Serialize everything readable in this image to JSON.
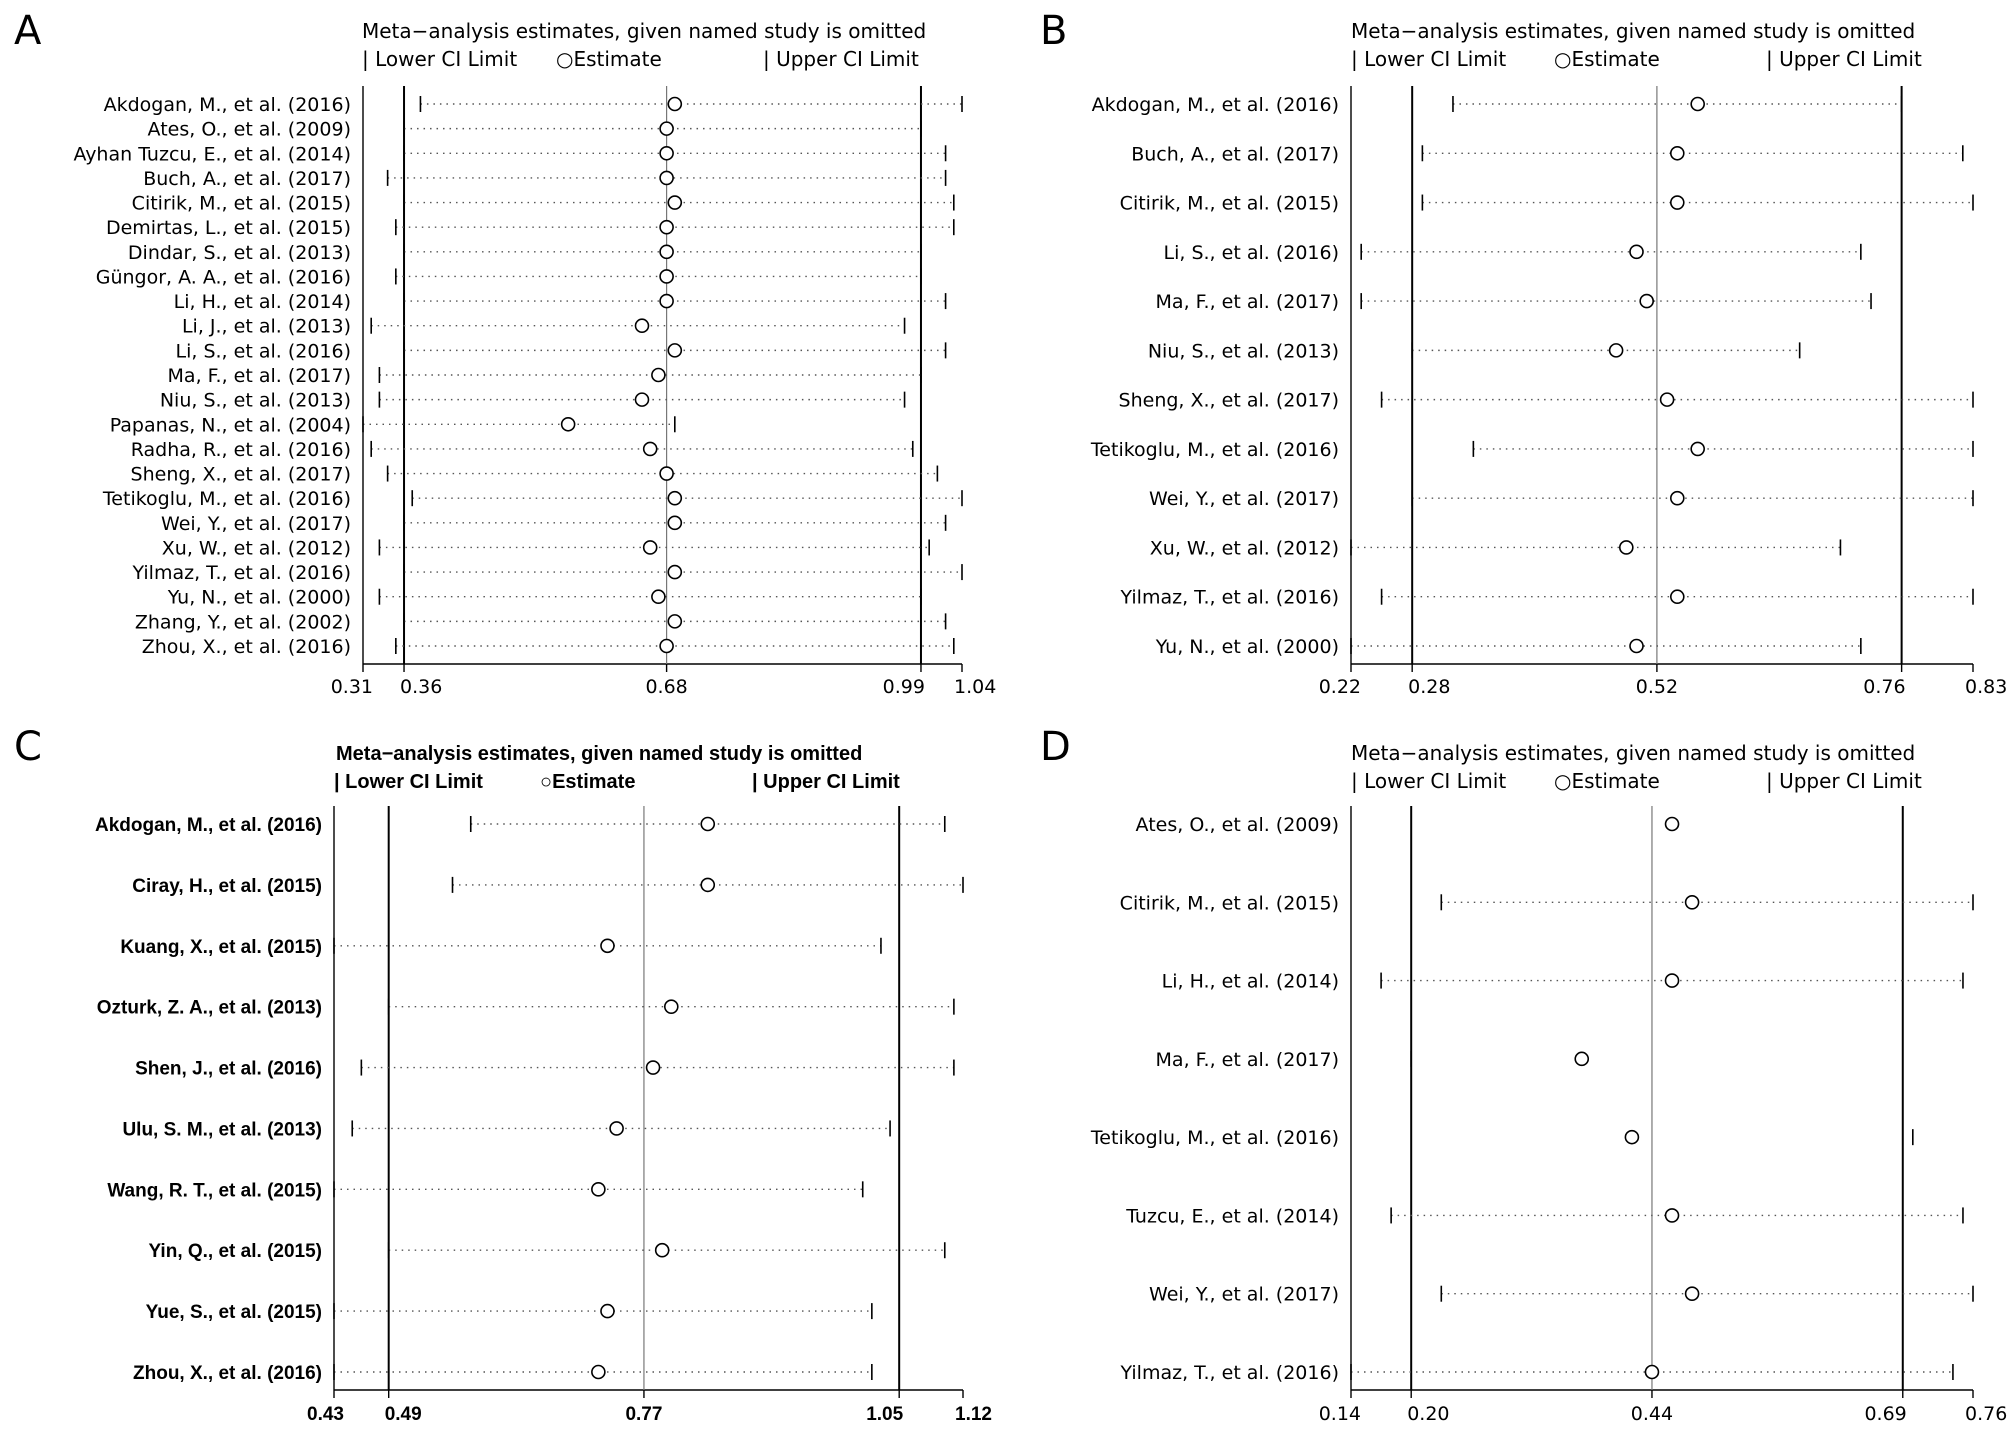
{
  "title": "Meta−analysis estimates, given named study is omitted",
  "legend": {
    "lower": "| Lower CI Limit",
    "estimate": "○Estimate",
    "upper": "| Upper CI Limit"
  },
  "chart_data": [
    {
      "type": "forest",
      "panel": "A",
      "title": "Meta−analysis estimates, given named study is omitted",
      "legend": [
        "Lower CI Limit",
        "Estimate",
        "Upper CI Limit"
      ],
      "xlim": [
        0.31,
        1.04
      ],
      "x_ticks": [
        {
          "value": 0.31,
          "label": "0.31"
        },
        {
          "value": 0.36,
          "label": "0.36"
        },
        {
          "value": 0.68,
          "label": "0.68"
        },
        {
          "value": 0.99,
          "label": "0.99"
        },
        {
          "value": 1.04,
          "label": "1.04"
        }
      ],
      "reference_lines": {
        "lower": 0.36,
        "estimate": 0.68,
        "upper": 0.99
      },
      "studies": [
        {
          "label": "Akdogan, M., et al. (2016)",
          "lower": 0.38,
          "estimate": 0.69,
          "upper": 1.04
        },
        {
          "label": "Ates, O., et al. (2009)",
          "lower": 0.36,
          "estimate": 0.68,
          "upper": 0.99
        },
        {
          "label": "Ayhan Tuzcu, E., et al. (2014)",
          "lower": 0.36,
          "estimate": 0.68,
          "upper": 1.02
        },
        {
          "label": "Buch, A., et al. (2017)",
          "lower": 0.34,
          "estimate": 0.68,
          "upper": 1.02
        },
        {
          "label": "Citirik, M., et al. (2015)",
          "lower": 0.36,
          "estimate": 0.69,
          "upper": 1.03
        },
        {
          "label": "Demirtas, L., et al. (2015)",
          "lower": 0.35,
          "estimate": 0.68,
          "upper": 1.03
        },
        {
          "label": "Dindar, S., et al. (2013)",
          "lower": 0.36,
          "estimate": 0.68,
          "upper": 0.99
        },
        {
          "label": "Güngor, A. A., et al. (2016)",
          "lower": 0.35,
          "estimate": 0.68,
          "upper": 0.99
        },
        {
          "label": "Li, H., et al. (2014)",
          "lower": 0.36,
          "estimate": 0.68,
          "upper": 1.02
        },
        {
          "label": "Li, J., et al. (2013)",
          "lower": 0.32,
          "estimate": 0.65,
          "upper": 0.97
        },
        {
          "label": "Li, S., et al. (2016)",
          "lower": 0.36,
          "estimate": 0.69,
          "upper": 1.02
        },
        {
          "label": "Ma, F., et al. (2017)",
          "lower": 0.33,
          "estimate": 0.67,
          "upper": 0.99
        },
        {
          "label": "Niu, S., et al. (2013)",
          "lower": 0.33,
          "estimate": 0.65,
          "upper": 0.97
        },
        {
          "label": "Papanas, N., et al. (2004)",
          "lower": 0.31,
          "estimate": 0.56,
          "upper": 0.69
        },
        {
          "label": "Radha, R., et al. (2016)",
          "lower": 0.32,
          "estimate": 0.66,
          "upper": 0.98
        },
        {
          "label": "Sheng, X., et al. (2017)",
          "lower": 0.34,
          "estimate": 0.68,
          "upper": 1.01
        },
        {
          "label": "Tetikoglu, M., et al. (2016)",
          "lower": 0.37,
          "estimate": 0.69,
          "upper": 1.04
        },
        {
          "label": "Wei, Y., et al. (2017)",
          "lower": 0.36,
          "estimate": 0.69,
          "upper": 1.02
        },
        {
          "label": "Xu, W., et al. (2012)",
          "lower": 0.33,
          "estimate": 0.66,
          "upper": 1.0
        },
        {
          "label": "Yilmaz, T., et al. (2016)",
          "lower": 0.36,
          "estimate": 0.69,
          "upper": 1.04
        },
        {
          "label": "Yu, N., et al. (2000)",
          "lower": 0.33,
          "estimate": 0.67,
          "upper": 0.99
        },
        {
          "label": "Zhang, Y., et al. (2002)",
          "lower": 0.36,
          "estimate": 0.69,
          "upper": 1.02
        },
        {
          "label": "Zhou, X., et al. (2016)",
          "lower": 0.35,
          "estimate": 0.68,
          "upper": 1.03
        }
      ]
    },
    {
      "type": "forest",
      "panel": "B",
      "title": "Meta−analysis estimates, given named study is omitted",
      "legend": [
        "Lower CI Limit",
        "Estimate",
        "Upper CI Limit"
      ],
      "xlim": [
        0.22,
        0.83
      ],
      "x_ticks": [
        {
          "value": 0.22,
          "label": "0.22"
        },
        {
          "value": 0.28,
          "label": "0.28"
        },
        {
          "value": 0.52,
          "label": "0.52"
        },
        {
          "value": 0.76,
          "label": "0.76"
        },
        {
          "value": 0.83,
          "label": "0.83"
        }
      ],
      "reference_lines": {
        "lower": 0.28,
        "estimate": 0.52,
        "upper": 0.76
      },
      "studies": [
        {
          "label": "Akdogan, M., et al. (2016)",
          "lower": 0.32,
          "estimate": 0.56,
          "upper": 0.76
        },
        {
          "label": "Buch, A., et al. (2017)",
          "lower": 0.29,
          "estimate": 0.54,
          "upper": 0.82
        },
        {
          "label": "Citirik, M., et al. (2015)",
          "lower": 0.29,
          "estimate": 0.54,
          "upper": 0.83
        },
        {
          "label": "Li, S., et al. (2016)",
          "lower": 0.23,
          "estimate": 0.5,
          "upper": 0.72
        },
        {
          "label": "Ma, F., et al. (2017)",
          "lower": 0.23,
          "estimate": 0.51,
          "upper": 0.73
        },
        {
          "label": "Niu, S., et al. (2013)",
          "lower": 0.28,
          "estimate": 0.48,
          "upper": 0.66
        },
        {
          "label": "Sheng, X., et al. (2017)",
          "lower": 0.25,
          "estimate": 0.53,
          "upper": 0.83
        },
        {
          "label": "Tetikoglu, M., et al. (2016)",
          "lower": 0.34,
          "estimate": 0.56,
          "upper": 0.83
        },
        {
          "label": "Wei, Y., et al. (2017)",
          "lower": 0.28,
          "estimate": 0.54,
          "upper": 0.83
        },
        {
          "label": "Xu, W., et al. (2012)",
          "lower": 0.22,
          "estimate": 0.49,
          "upper": 0.7
        },
        {
          "label": "Yilmaz, T., et al. (2016)",
          "lower": 0.25,
          "estimate": 0.54,
          "upper": 0.83
        },
        {
          "label": "Yu, N., et al. (2000)",
          "lower": 0.22,
          "estimate": 0.5,
          "upper": 0.72
        }
      ]
    },
    {
      "type": "forest",
      "panel": "C",
      "title": "Meta−analysis estimates, given named study is omitted",
      "legend": [
        "Lower CI Limit",
        "Estimate",
        "Upper CI Limit"
      ],
      "xlim": [
        0.43,
        1.12
      ],
      "x_ticks": [
        {
          "value": 0.43,
          "label": "0.43"
        },
        {
          "value": 0.49,
          "label": "0.49"
        },
        {
          "value": 0.77,
          "label": "0.77"
        },
        {
          "value": 1.05,
          "label": "1.05"
        },
        {
          "value": 1.12,
          "label": "1.12"
        }
      ],
      "reference_lines": {
        "lower": 0.49,
        "estimate": 0.77,
        "upper": 1.05
      },
      "studies": [
        {
          "label": "Akdogan, M., et al. (2016)",
          "lower": 0.58,
          "estimate": 0.84,
          "upper": 1.1
        },
        {
          "label": "Ciray, H., et al. (2015)",
          "lower": 0.56,
          "estimate": 0.84,
          "upper": 1.12
        },
        {
          "label": "Kuang, X., et al. (2015)",
          "lower": 0.43,
          "estimate": 0.73,
          "upper": 1.03
        },
        {
          "label": "Ozturk, Z. A., et al. (2013)",
          "lower": 0.49,
          "estimate": 0.8,
          "upper": 1.11
        },
        {
          "label": "Shen, J., et al. (2016)",
          "lower": 0.46,
          "estimate": 0.78,
          "upper": 1.11
        },
        {
          "label": "Ulu, S. M., et al. (2013)",
          "lower": 0.45,
          "estimate": 0.74,
          "upper": 1.04
        },
        {
          "label": "Wang, R. T., et al. (2015)",
          "lower": 0.43,
          "estimate": 0.72,
          "upper": 1.01
        },
        {
          "label": "Yin, Q., et al. (2015)",
          "lower": 0.49,
          "estimate": 0.79,
          "upper": 1.1
        },
        {
          "label": "Yue, S., et al. (2015)",
          "lower": 0.43,
          "estimate": 0.73,
          "upper": 1.02
        },
        {
          "label": "Zhou, X., et al. (2016)",
          "lower": 0.43,
          "estimate": 0.72,
          "upper": 1.02
        }
      ]
    },
    {
      "type": "forest",
      "panel": "D",
      "title": "Meta−analysis estimates, given named study is omitted",
      "legend": [
        "Lower CI Limit",
        "Estimate",
        "Upper CI Limit"
      ],
      "xlim": [
        0.14,
        0.76
      ],
      "x_ticks": [
        {
          "value": 0.14,
          "label": "0.14"
        },
        {
          "value": 0.2,
          "label": "0.20"
        },
        {
          "value": 0.44,
          "label": "0.44"
        },
        {
          "value": 0.69,
          "label": "0.69"
        },
        {
          "value": 0.76,
          "label": "0.76"
        }
      ],
      "reference_lines": {
        "lower": 0.2,
        "estimate": 0.44,
        "upper": 0.69
      },
      "studies": [
        {
          "label": "Ates, O., et al. (2009)",
          "lower": null,
          "estimate": 0.46,
          "upper": null
        },
        {
          "label": "Citirik, M., et al. (2015)",
          "lower": 0.23,
          "estimate": 0.48,
          "upper": 0.76
        },
        {
          "label": "Li, H., et al. (2014)",
          "lower": 0.17,
          "estimate": 0.46,
          "upper": 0.75
        },
        {
          "label": "Ma, F., et al. (2017)",
          "lower": 0.2,
          "estimate": 0.37,
          "upper": null
        },
        {
          "label": "Tetikoglu, M., et al. (2016)",
          "lower": null,
          "estimate": 0.42,
          "upper": 0.7
        },
        {
          "label": "Tuzcu, E., et al. (2014)",
          "lower": 0.18,
          "estimate": 0.46,
          "upper": 0.75
        },
        {
          "label": "Wei, Y., et al. (2017)",
          "lower": 0.23,
          "estimate": 0.48,
          "upper": 0.76
        },
        {
          "label": "Yilmaz, T., et al. (2016)",
          "lower": 0.14,
          "estimate": 0.44,
          "upper": 0.74
        }
      ]
    }
  ]
}
